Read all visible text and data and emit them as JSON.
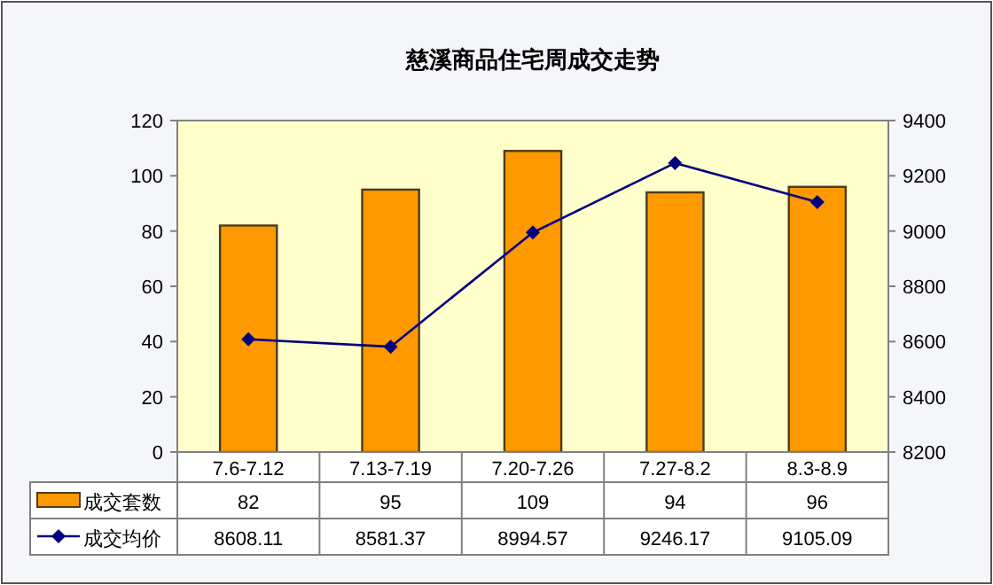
{
  "chart_data": {
    "type": "bar",
    "title": "慈溪商品住宅周成交走势",
    "categories": [
      "7.6-7.12",
      "7.13-7.19",
      "7.20-7.26",
      "7.27-8.2",
      "8.3-8.9"
    ],
    "series": [
      {
        "name": "成交套数",
        "color": "#ff9900",
        "values": [
          82,
          95,
          109,
          94,
          96
        ]
      },
      {
        "name": "成交均价",
        "type": "line",
        "axis": "y2",
        "color": "#000080",
        "marker": "diamond",
        "values": [
          8608.11,
          8581.37,
          8994.57,
          9246.17,
          9105.09
        ]
      }
    ],
    "ylim": [
      0,
      120
    ],
    "yticks": [
      0,
      20,
      40,
      60,
      80,
      100,
      120
    ],
    "y2lim": [
      8200,
      9400
    ],
    "y2ticks": [
      8200,
      8400,
      8600,
      8800,
      9000,
      9200,
      9400
    ],
    "data_labels": true,
    "legend": "bottom",
    "grid": false
  }
}
